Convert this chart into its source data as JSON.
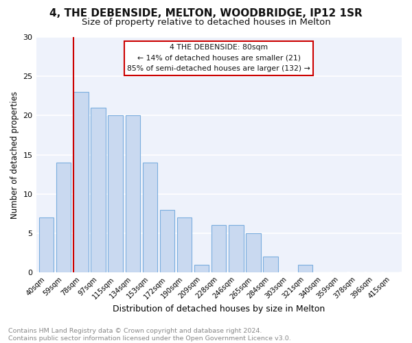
{
  "title1": "4, THE DEBENSIDE, MELTON, WOODBRIDGE, IP12 1SR",
  "title2": "Size of property relative to detached houses in Melton",
  "xlabel": "Distribution of detached houses by size in Melton",
  "ylabel": "Number of detached properties",
  "categories": [
    "40sqm",
    "59sqm",
    "78sqm",
    "97sqm",
    "115sqm",
    "134sqm",
    "153sqm",
    "172sqm",
    "190sqm",
    "209sqm",
    "228sqm",
    "246sqm",
    "265sqm",
    "284sqm",
    "303sqm",
    "321sqm",
    "340sqm",
    "359sqm",
    "378sqm",
    "396sqm",
    "415sqm"
  ],
  "values": [
    7,
    14,
    23,
    21,
    20,
    20,
    14,
    8,
    7,
    1,
    6,
    6,
    5,
    2,
    0,
    1,
    0,
    0,
    0,
    0,
    0
  ],
  "bar_color": "#c9d9f0",
  "bar_edge_color": "#7aadde",
  "highlight_line_index": 2,
  "highlight_color": "#cc0000",
  "annotation_title": "4 THE DEBENSIDE: 80sqm",
  "annotation_line1": "← 14% of detached houses are smaller (21)",
  "annotation_line2": "85% of semi-detached houses are larger (132) →",
  "ylim": [
    0,
    30
  ],
  "yticks": [
    0,
    5,
    10,
    15,
    20,
    25,
    30
  ],
  "footer_text": "Contains HM Land Registry data © Crown copyright and database right 2024.\nContains public sector information licensed under the Open Government Licence v3.0.",
  "bg_color": "#ffffff",
  "plot_bg_color": "#eef2fb",
  "grid_color": "#ffffff",
  "title1_fontsize": 11,
  "title2_fontsize": 9.5,
  "xlabel_fontsize": 9,
  "ylabel_fontsize": 8.5,
  "footer_fontsize": 6.8
}
